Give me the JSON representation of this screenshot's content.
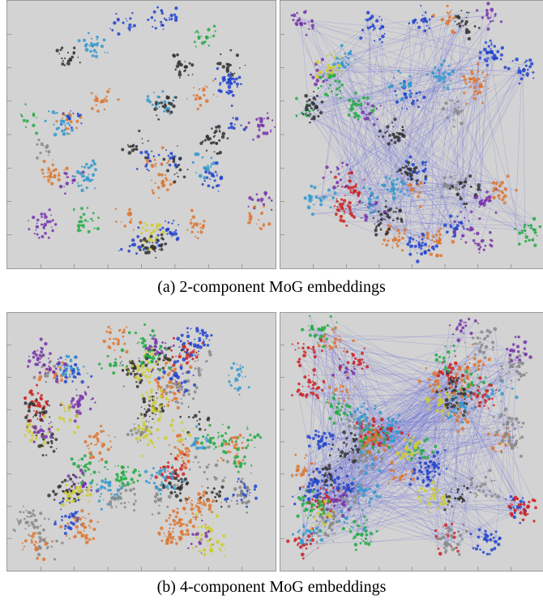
{
  "figure": {
    "caption_a": "(a) 2-component MoG embeddings",
    "caption_b": "(b) 4-component MoG embeddings"
  },
  "chart_data": [
    {
      "type": "scatter",
      "panel": "a-left",
      "background": "#d3d3d3",
      "links": false,
      "palette": [
        "#cc2222",
        "#2244cc",
        "#22aa44",
        "#7733aa",
        "#cccc33",
        "#333333",
        "#3399cc",
        "#dd7733",
        "#888888"
      ]
    },
    {
      "type": "scatter",
      "panel": "a-right",
      "background": "#d3d3d3",
      "links": true,
      "link_color": "#6f74d6",
      "palette": [
        "#cc2222",
        "#2244cc",
        "#22aa44",
        "#7733aa",
        "#cccc33",
        "#333333",
        "#3399cc",
        "#dd7733",
        "#888888"
      ]
    },
    {
      "type": "scatter",
      "panel": "b-left",
      "background": "#d3d3d3",
      "links": false,
      "palette": [
        "#cc2222",
        "#2244cc",
        "#22aa44",
        "#7733aa",
        "#cccc33",
        "#333333",
        "#3399cc",
        "#dd7733",
        "#888888"
      ]
    },
    {
      "type": "scatter",
      "panel": "b-right",
      "background": "#d3d3d3",
      "links": true,
      "link_color": "#6f74d6",
      "palette": [
        "#cc2222",
        "#2244cc",
        "#22aa44",
        "#7733aa",
        "#cccc33",
        "#333333",
        "#3399cc",
        "#dd7733",
        "#888888"
      ]
    }
  ]
}
